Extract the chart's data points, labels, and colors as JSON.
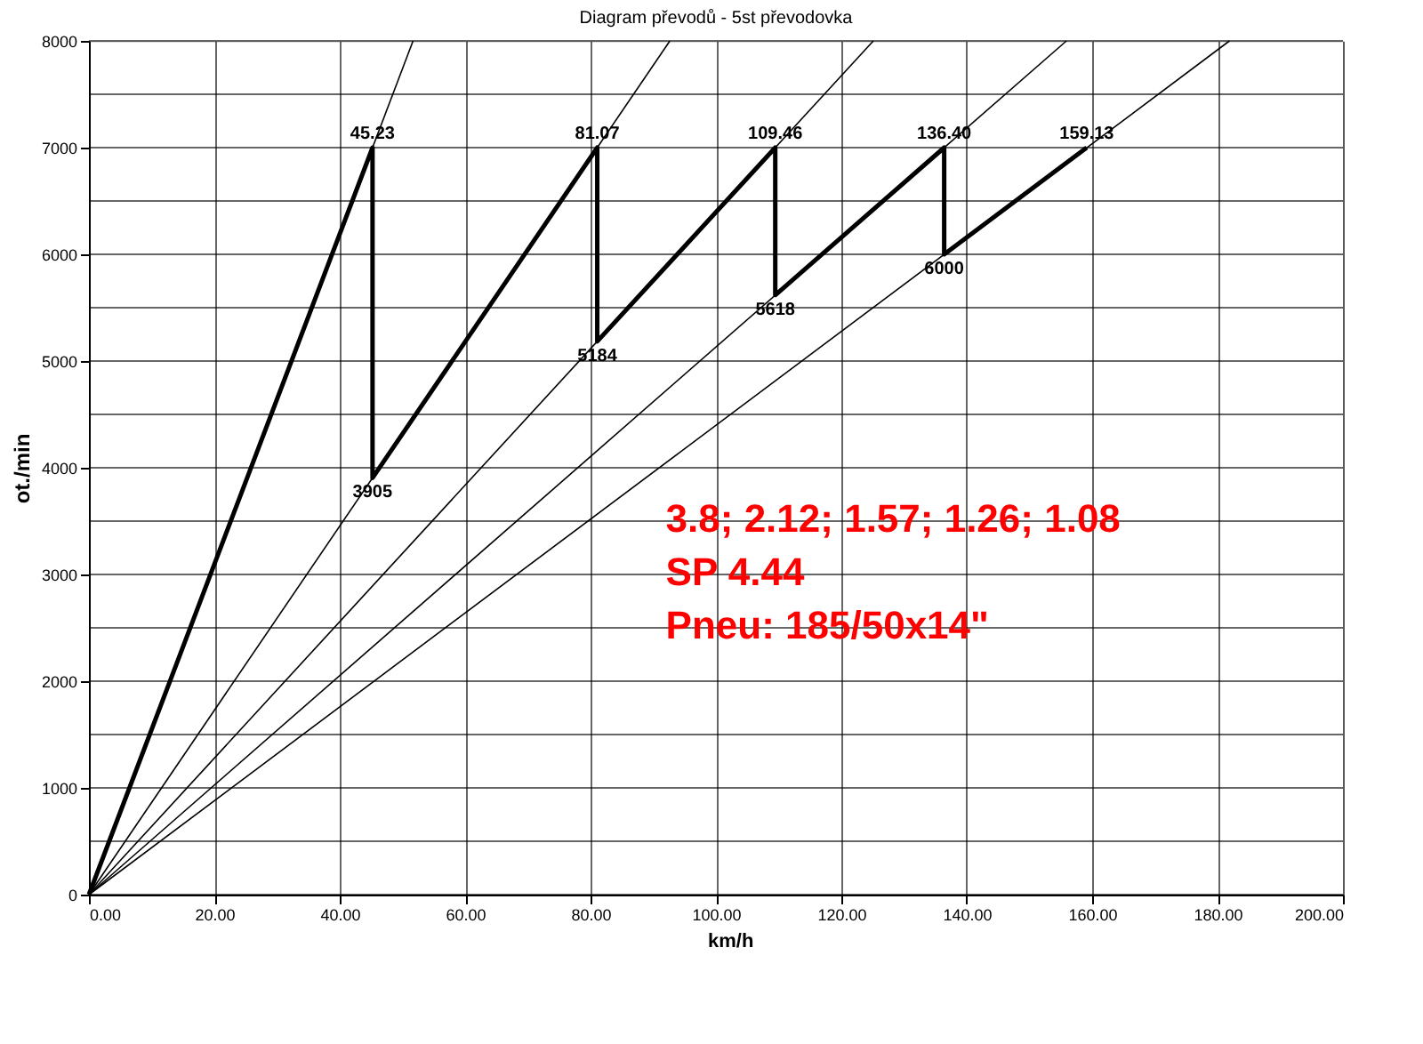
{
  "chart_data": {
    "type": "line",
    "title": "Diagram převodů - 5st převodovka",
    "xlabel": "km/h",
    "ylabel": "ot./min",
    "xlim": [
      0,
      200
    ],
    "ylim": [
      0,
      8000
    ],
    "xticks": [
      {
        "value": 0,
        "label": "0.00"
      },
      {
        "value": 20,
        "label": "20.00"
      },
      {
        "value": 40,
        "label": "40.00"
      },
      {
        "value": 60,
        "label": "60.00"
      },
      {
        "value": 80,
        "label": "80.00"
      },
      {
        "value": 100,
        "label": "100.00"
      },
      {
        "value": 120,
        "label": "120.00"
      },
      {
        "value": 140,
        "label": "140.00"
      },
      {
        "value": 160,
        "label": "160.00"
      },
      {
        "value": 180,
        "label": "180.00"
      },
      {
        "value": 200,
        "label": "200.00"
      }
    ],
    "yticks": [
      0,
      {
        "value": 500,
        "label": null
      },
      1000,
      {
        "value": 1500,
        "label": null
      },
      2000,
      {
        "value": 2500,
        "label": null
      },
      3000,
      {
        "value": 3500,
        "label": null
      },
      4000,
      {
        "value": 4500,
        "label": null
      },
      5000,
      {
        "value": 5500,
        "label": null
      },
      6000,
      {
        "value": 6500,
        "label": null
      },
      7000,
      {
        "value": 7500,
        "label": null
      },
      8000
    ],
    "grid": true,
    "marker": "none",
    "line_style": "solid",
    "series": [
      {
        "color": "#000000",
        "x": [
          0,
          51.69
        ],
        "values": [
          0,
          8000
        ]
      },
      {
        "color": "#000000",
        "x": [
          0,
          92.65
        ],
        "values": [
          0,
          8000
        ]
      },
      {
        "color": "#000000",
        "x": [
          0,
          125.1
        ],
        "values": [
          0,
          8000
        ]
      },
      {
        "color": "#000000",
        "x": [
          0,
          155.9
        ],
        "values": [
          0,
          8000
        ]
      },
      {
        "color": "#000000",
        "x": [
          0,
          181.9
        ],
        "values": [
          0,
          8000
        ]
      },
      {
        "color": "#000000",
        "x": [
          0,
          45.23,
          45.23,
          81.07,
          81.07,
          109.46,
          109.46,
          136.4,
          136.4,
          159.13
        ],
        "values": [
          0,
          7000,
          3905,
          7000,
          5184,
          7000,
          5618,
          7000,
          6000,
          7000
        ]
      }
    ],
    "annotations": [
      {
        "text": "45.23",
        "x": 45.23,
        "y": 7000
      },
      {
        "text": "81.07",
        "x": 81.07,
        "y": 7000
      },
      {
        "text": "109.46",
        "x": 109.46,
        "y": 7000
      },
      {
        "text": "136.40",
        "x": 136.4,
        "y": 7000
      },
      {
        "text": "159.13",
        "x": 159.13,
        "y": 7000
      },
      {
        "text": "3905",
        "x": 45.23,
        "y": 3905
      },
      {
        "text": "5184",
        "x": 81.07,
        "y": 5184
      },
      {
        "text": "5618",
        "x": 109.46,
        "y": 5618
      },
      {
        "text": "6000",
        "x": 136.4,
        "y": 6000
      },
      "3.8; 2.12; 1.57; 1.26; 1.08",
      "SP 4.44",
      "Pneu: 185/50x14\""
    ]
  }
}
